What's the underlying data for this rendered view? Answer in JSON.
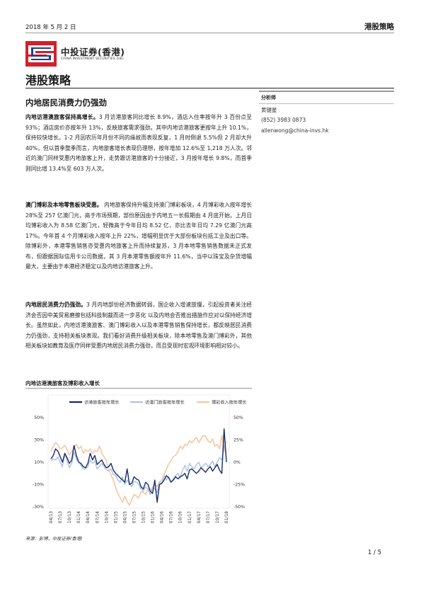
{
  "header": {
    "date": "2018 年 5 月 2 日",
    "report_type": "港股策略"
  },
  "logo": {
    "cn": "中投证券(香港)",
    "en": "CHINA INVESTMENT SECURITIES (HK)"
  },
  "page_title": "港股策略",
  "article_title": "内地居民消费力仍强劲",
  "sidebar": {
    "heading": "分析师",
    "name": "黄键星",
    "phone": "(852) 3983 0873",
    "email": "allenwong@china-invs.hk"
  },
  "paragraphs": [
    {
      "lead": "内地访港澳旅客保持高增长。",
      "text": "3 月访港旅客同比增长 8.9%，酒店入住率按年升 3 百份点至 93%；酒店房价亦按年升 13%，反映旅客需求强劲。其中内地访港旅客更按年上升 10.1%，保持较快增长。1-2 月因农历年月份不同的缘故而表现反复，1 月时倒退 5.5%但 2 月却大升 40%，但以首季整季而言，内地旅客增长表现仍理想，按年增加 12.6%至 1,218 万人次。邻近的澳门同样受惠内地旅客上升，走势跟访港旅客的十分接近，3 月按年增长 9.8%，而首季则同比增 13.4%至 603 万人次。"
    },
    {
      "lead": "澳门博彩及本地零售板块受惠。",
      "text": " 内地旅客保持升幅支持澳门博彩板块，4 月博彩收入按年增长 28%至 257 亿澳门元，高于市场预期，部份原因由于内地五一长假期由 4 月底开始。上月日均博彩收入为 8.58 亿澳门元，轻微高于今年日均 8.52 亿，亦比去年日均 7.29 亿澳门元高 17%。今年首 4 个月博彩收入按年上升 22%，增幅明显优于大部份板块包括工业及出口等。除博彩外，本港零售销售亦受惠内地旅客上升而持续复苏，3 月本地零售销售数据未正式发布，但跟据国际信用卡公司数据，其 3 月本港零售额按年升 11.6%，当中以珠宝及杂货增幅最大，主要由于本港经济稳定以及内地访港旅客上升。"
    },
    {
      "lead": "内地居民消费力仍强劲。",
      "text": "3 月内地部份经济数据转弱，国企收入增速放慢，引起投资者关注经济会否因中美贸易磨擦包括科技制裁而进一步恶化 以及内地会否推出措施作应对以保持经济增长。虽然如此，内地访港澳旅客、澳门博彩收入以及本港零售销售保持增长，都反映居民消费力仍强劲，支持相关板块表现。我们看好消费升级相关板块，除本地零售及澳门博彩外，其他相关板块如教育及医疗同样受惠内地居民消费力强劲，而且受现时宏观环境影响相对较小。"
    }
  ],
  "chart_title": "内地访港澳旅客及博彩收入增长",
  "source": "来源：彭博，中投证券(香港)",
  "page_number": "1 / 5",
  "colors": {
    "hk": "#1a2a6c",
    "macau": "#a9c4e3",
    "gaming": "#f6c7a4",
    "logo_red": "#d4202b",
    "logo_blue": "#1f3e8c"
  },
  "chart_data": {
    "type": "line",
    "title": "内地访港澳旅客及博彩收入增长",
    "x_ticks": [
      "04/13",
      "07/13",
      "10/13",
      "01/14",
      "04/14",
      "07/14",
      "10/14",
      "01/15",
      "04/15",
      "07/15",
      "10/15",
      "01/16",
      "04/16",
      "07/16",
      "10/16",
      "01/17",
      "04/17",
      "07/17",
      "10/17",
      "01/18"
    ],
    "left_axis": {
      "ticks": [
        "50%",
        "30%",
        "10%",
        "-10%",
        "-30%"
      ],
      "ylim": [
        -30,
        50
      ]
    },
    "right_axis": {
      "ticks": [
        "50%",
        "25%",
        "0%",
        "-25%",
        "-50%"
      ],
      "ylim": [
        -50,
        50
      ]
    },
    "x_start": "2013-04",
    "x_end": "2018-04",
    "series": [
      {
        "name": "访港旅客按年增长",
        "axis": "left",
        "values": [
          13,
          16,
          22,
          20,
          15,
          10,
          18,
          14,
          9,
          12,
          25,
          16,
          10,
          9,
          6,
          5,
          9,
          18,
          12,
          16,
          8,
          10,
          12,
          8,
          5,
          6,
          9,
          3,
          0,
          -2,
          -4,
          -6,
          -8,
          4,
          -10,
          -9,
          -3,
          -5,
          -6,
          -12,
          -14,
          -8,
          -10,
          -16,
          -18,
          -6,
          -26,
          -10,
          -9,
          -6,
          -2,
          -4,
          -8,
          -6,
          -3,
          -5,
          -3,
          -2,
          0,
          -5,
          3,
          4,
          2,
          0,
          2,
          5,
          3,
          1,
          4,
          6,
          2,
          5,
          8,
          3,
          0,
          40,
          10
        ]
      },
      {
        "name": "访澳门旅客按年增长",
        "axis": "left",
        "values": [
          11,
          13,
          12,
          15,
          10,
          6,
          17,
          11,
          5,
          9,
          19,
          13,
          10,
          7,
          4,
          4,
          6,
          12,
          9,
          11,
          4,
          6,
          9,
          6,
          3,
          2,
          4,
          -1,
          -2,
          -6,
          -8,
          -3,
          -10,
          -6,
          -9,
          -12,
          -7,
          -8,
          -10,
          -14,
          -16,
          -12,
          -14,
          -19,
          -13,
          -14,
          -17,
          -8,
          -9,
          -2,
          -6,
          -3,
          -8,
          -5,
          -2,
          0,
          -4,
          3,
          7,
          2,
          9,
          6,
          4,
          8,
          10,
          5,
          7,
          9,
          6,
          8,
          11,
          6,
          10,
          14,
          12,
          25,
          18
        ]
      },
      {
        "name": "博彩收入按年增长",
        "axis": "right",
        "values": [
          12,
          18,
          22,
          20,
          15,
          16,
          19,
          14,
          8,
          12,
          16,
          20,
          15,
          18,
          10,
          14,
          12,
          15,
          10,
          13,
          12,
          18,
          10,
          6,
          2,
          -8,
          -14,
          -20,
          -28,
          -35,
          -40,
          -45,
          -38,
          -44,
          -48,
          -42,
          -36,
          -38,
          -40,
          -33,
          -34,
          -36,
          -30,
          -32,
          -28,
          -26,
          -27,
          -22,
          -20,
          -14,
          -8,
          -2,
          2,
          6,
          8,
          12,
          18,
          15,
          20,
          19,
          24,
          22,
          25,
          28,
          22,
          26,
          30,
          29,
          24,
          22,
          26,
          18,
          20,
          15,
          30,
          12,
          24
        ]
      }
    ]
  }
}
